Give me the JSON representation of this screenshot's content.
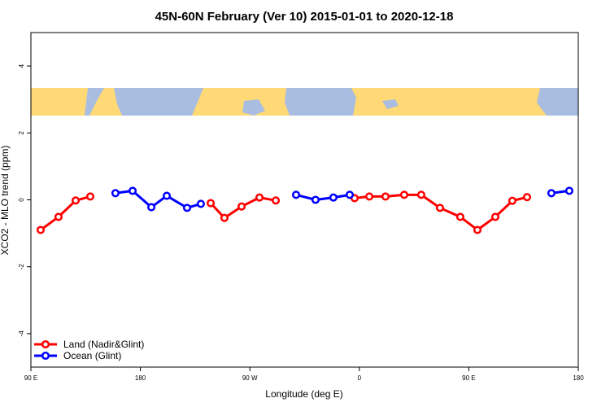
{
  "chart_data": {
    "type": "line",
    "title": "45N-60N February (Ver 10)   2015-01-01 to 2020-12-18",
    "x_label": "Longitude (deg E)",
    "y_label": "XCO2 - MLO trend (ppm)",
    "xlim": [
      90,
      540
    ],
    "xticks": [
      {
        "value": 90,
        "label": "90 E"
      },
      {
        "value": 180,
        "label": "180"
      },
      {
        "value": 270,
        "label": "90 W"
      },
      {
        "value": 360,
        "label": "0"
      },
      {
        "value": 450,
        "label": "90 E"
      },
      {
        "value": 540,
        "label": "180"
      }
    ],
    "ylim": [
      -5,
      5
    ],
    "yticks": [
      -4,
      -2,
      0,
      2,
      4
    ],
    "legend": "bottom-left",
    "series": [
      {
        "name": "Land (Nadir&Glint)",
        "color": "#ff0000",
        "x": [
          98,
          112.7,
          126.8,
          138.8,
          null,
          237.8,
          249.1,
          263.2,
          277.9,
          291.3,
          null,
          356.1,
          368.2,
          381.5,
          396.9,
          410.9,
          426.3,
          443,
          457.1,
          471.8,
          485.8,
          497.9
        ],
        "values": [
          -0.9,
          -0.51,
          -0.02,
          0.1,
          null,
          -0.1,
          -0.54,
          -0.2,
          0.07,
          -0.02,
          null,
          0.05,
          0.1,
          0.1,
          0.15,
          0.15,
          -0.24,
          -0.51,
          -0.9,
          -0.51,
          -0.03,
          0.08
        ]
      },
      {
        "name": "Ocean (Glint)",
        "color": "#0000ff",
        "x": [
          159.5,
          173.6,
          189,
          201.7,
          218.4,
          229.7,
          null,
          308,
          324,
          338.7,
          352.1,
          null,
          517.9,
          532.6
        ],
        "values": [
          0.2,
          0.27,
          -0.22,
          0.12,
          -0.24,
          -0.12,
          null,
          0.15,
          0,
          0.07,
          0.15,
          null,
          0.2,
          0.27
        ]
      }
    ]
  }
}
